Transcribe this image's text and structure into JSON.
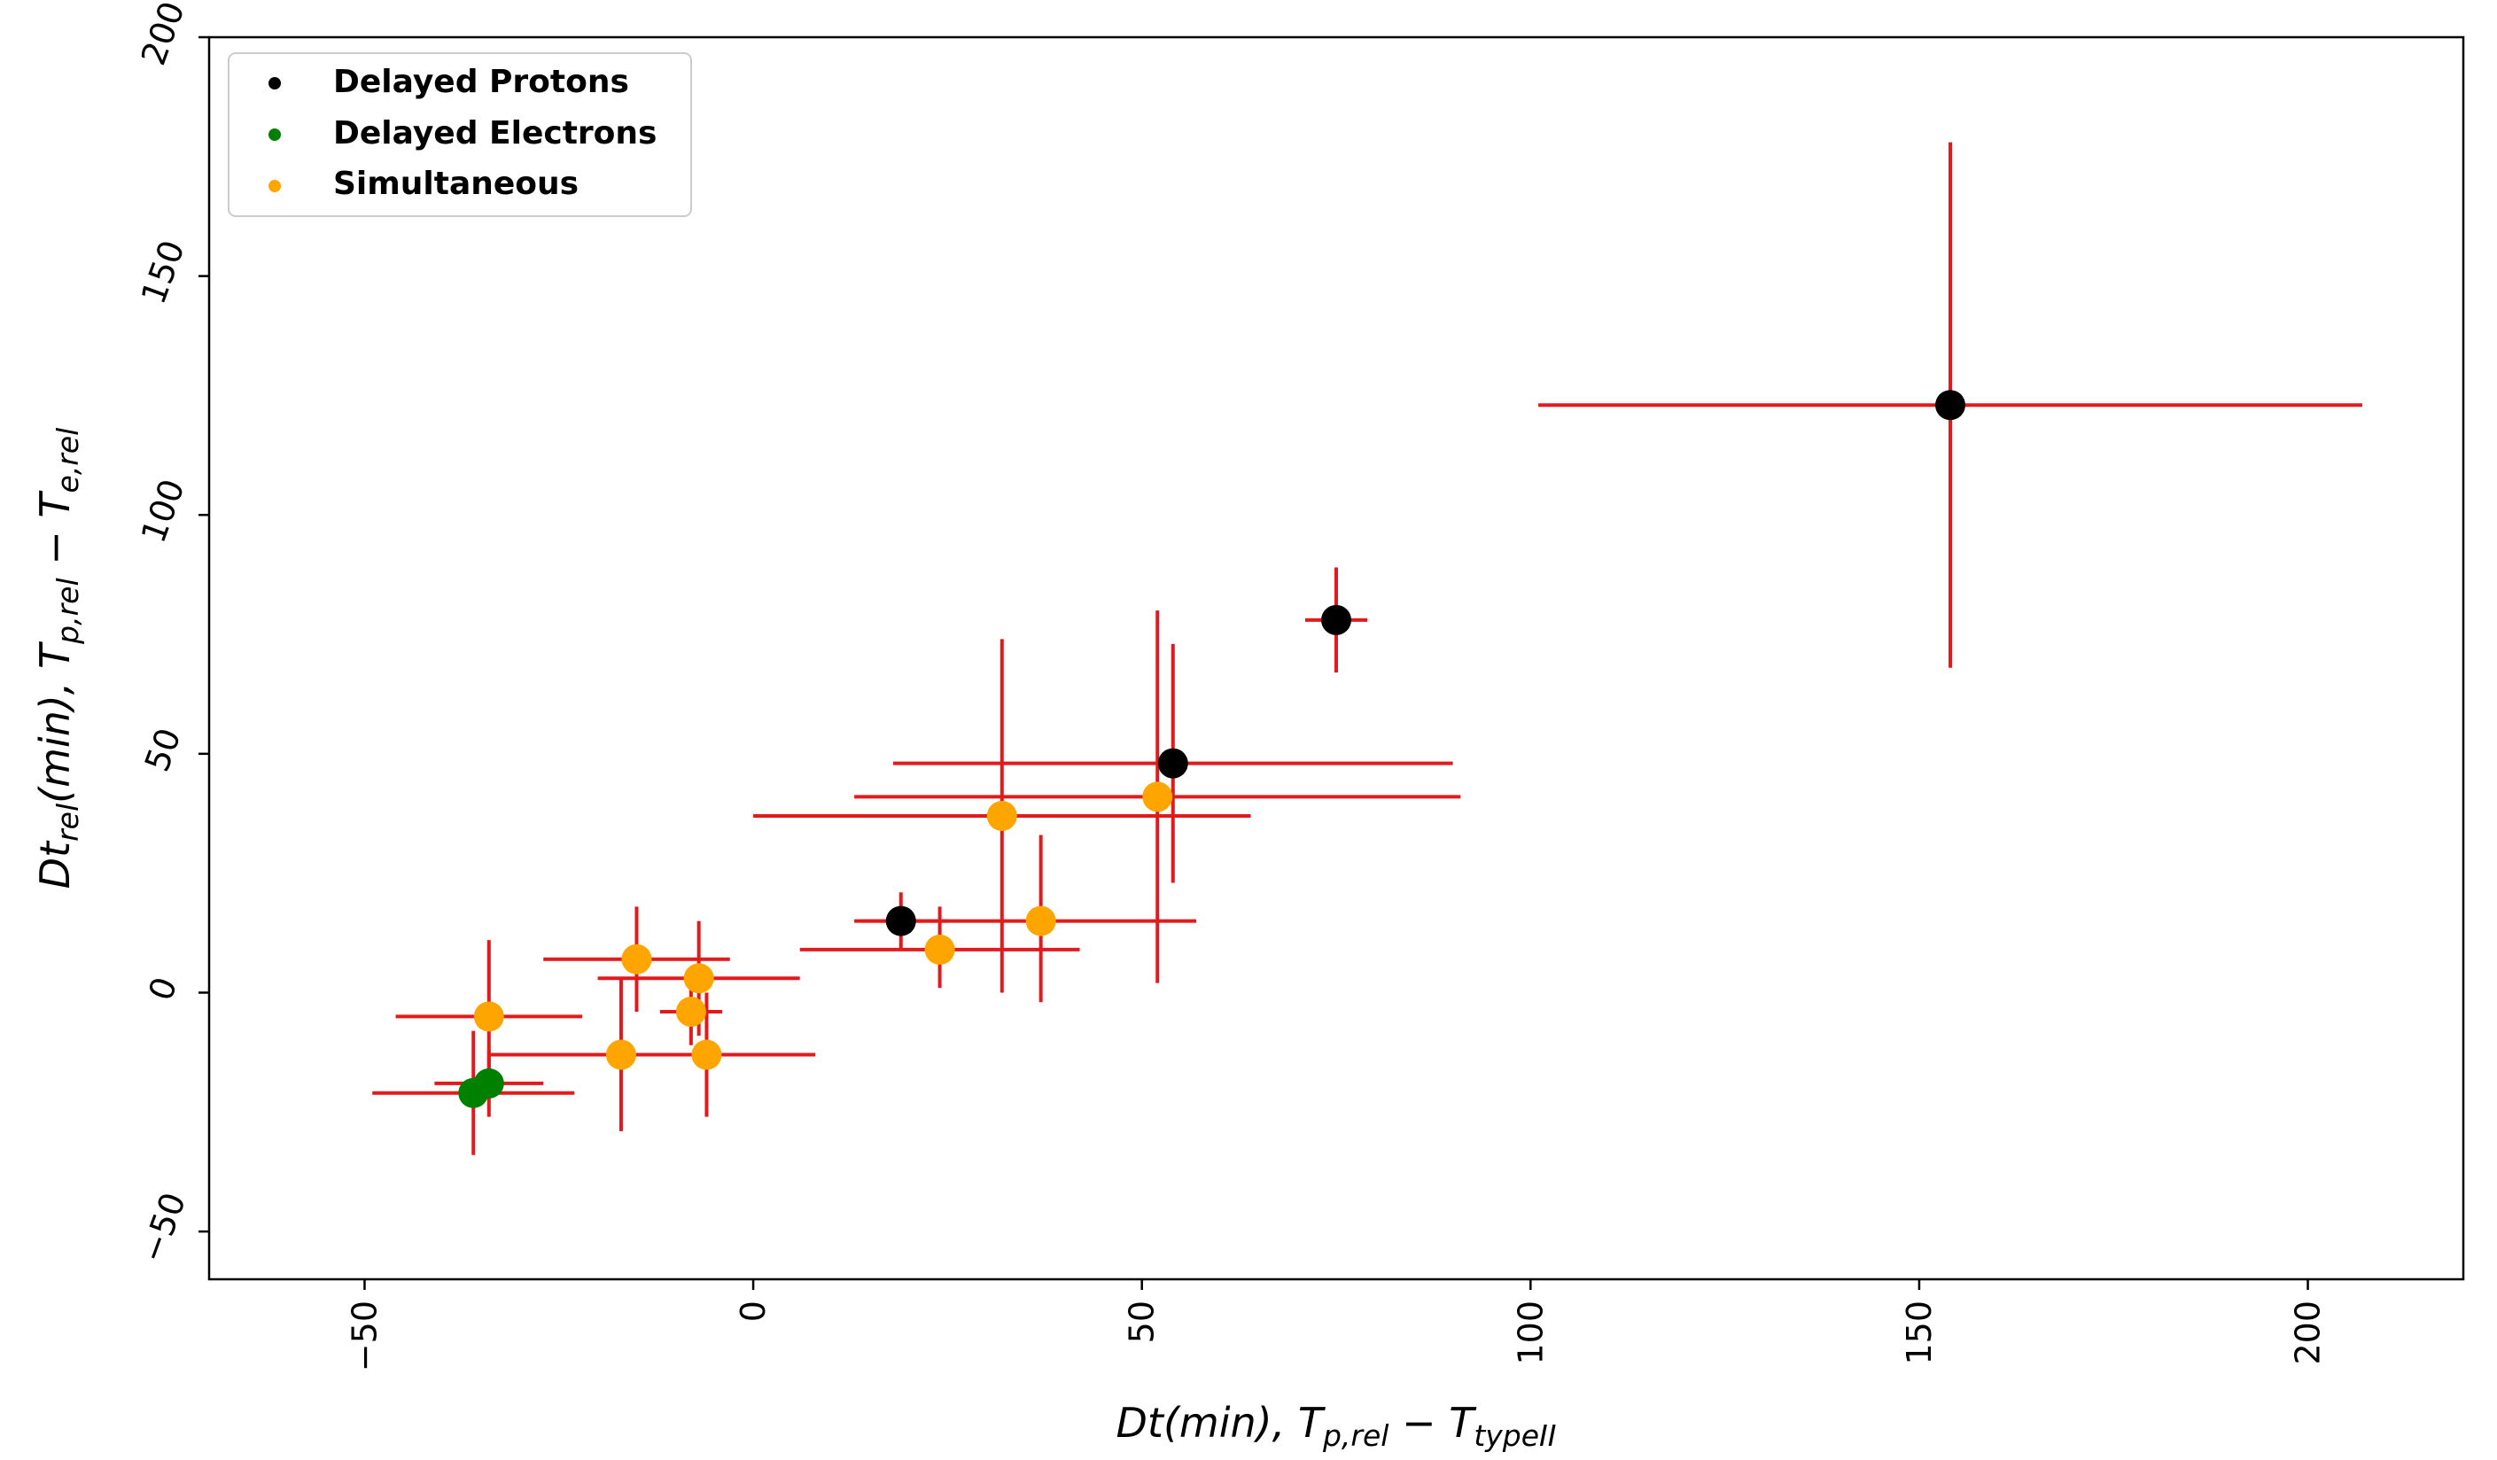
{
  "chart_data": {
    "type": "scatter",
    "title": "",
    "xlabel": {
      "base": "Dt(min), T",
      "sub1": "p,rel",
      "mid": " − T",
      "sub2": "typeII"
    },
    "ylabel": {
      "base": "Dt",
      "sub0": "rel",
      "base2": "(min), T",
      "sub1": "p,rel",
      "mid": " − T",
      "sub2": "e,rel"
    },
    "xlim": [
      -70,
      220
    ],
    "ylim": [
      -60,
      200
    ],
    "xticks": [
      -50,
      0,
      50,
      100,
      150,
      200
    ],
    "yticks": [
      -50,
      0,
      50,
      100,
      150,
      200
    ],
    "xtick_labels": [
      "−50",
      "0",
      "50",
      "100",
      "150",
      "200"
    ],
    "ytick_labels": [
      "−50",
      "0",
      "50",
      "100",
      "150",
      "200"
    ],
    "tick_label_rotation": "vertical",
    "grid": false,
    "legend_position": "top-left",
    "error_bar_color": "#e31a1c",
    "series": [
      {
        "name": "Delayed Protons",
        "color": "#000000",
        "points": [
          {
            "x": 154,
            "y": 123,
            "xerr": [
              53,
              53
            ],
            "yerr": [
              55,
              55
            ]
          },
          {
            "x": 75,
            "y": 78,
            "xerr": [
              4,
              4
            ],
            "yerr": [
              11,
              11
            ]
          },
          {
            "x": 54,
            "y": 48,
            "xerr": [
              36,
              36
            ],
            "yerr": [
              25,
              25
            ]
          },
          {
            "x": 19,
            "y": 15,
            "xerr": [
              6,
              6
            ],
            "yerr": [
              6,
              6
            ]
          }
        ]
      },
      {
        "name": "Delayed Electrons",
        "color": "#008000",
        "points": [
          {
            "x": -36,
            "y": -21,
            "xerr": [
              13,
              13
            ],
            "yerr": [
              13,
              13
            ]
          },
          {
            "x": -34,
            "y": -19,
            "xerr": [
              7,
              7
            ],
            "yerr": [
              7,
              7
            ]
          }
        ]
      },
      {
        "name": "Simultaneous",
        "color": "#ffa500",
        "points": [
          {
            "x": 32,
            "y": 37,
            "xerr": [
              32,
              32
            ],
            "yerr": [
              37,
              37
            ]
          },
          {
            "x": 52,
            "y": 41,
            "xerr": [
              39,
              39
            ],
            "yerr": [
              39,
              39
            ]
          },
          {
            "x": 37,
            "y": 15,
            "xerr": [
              23,
              20
            ],
            "yerr": [
              17,
              18
            ]
          },
          {
            "x": 24,
            "y": 9,
            "xerr": [
              18,
              18
            ],
            "yerr": [
              8,
              9
            ]
          },
          {
            "x": -15,
            "y": 7,
            "xerr": [
              12,
              12
            ],
            "yerr": [
              11,
              11
            ]
          },
          {
            "x": -7,
            "y": 3,
            "xerr": [
              13,
              13
            ],
            "yerr": [
              12,
              12
            ]
          },
          {
            "x": -8,
            "y": -4,
            "xerr": [
              4,
              4
            ],
            "yerr": [
              7,
              7
            ]
          },
          {
            "x": -34,
            "y": -5,
            "xerr": [
              12,
              12
            ],
            "yerr": [
              16,
              16
            ]
          },
          {
            "x": -17,
            "y": -13,
            "xerr": [
              17,
              0
            ],
            "yerr": [
              16,
              16
            ]
          },
          {
            "x": -6,
            "y": -13,
            "xerr": [
              14,
              14
            ],
            "yerr": [
              13,
              13
            ]
          }
        ]
      }
    ]
  }
}
